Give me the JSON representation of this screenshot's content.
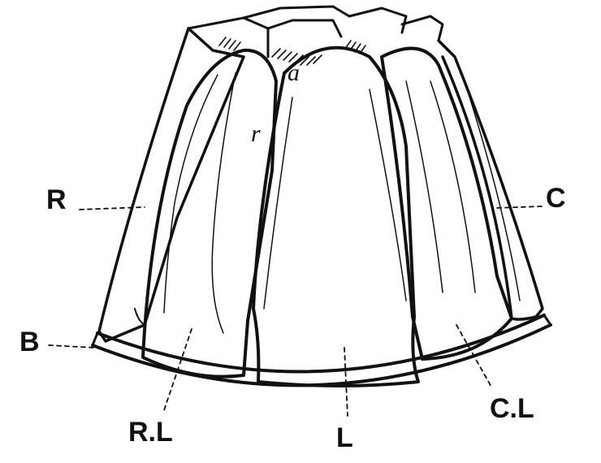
{
  "figure": {
    "labels": {
      "R": "R",
      "C": "C",
      "B": "B",
      "RL": "R.L",
      "L": "L",
      "CL": "C.L",
      "a": "a",
      "r": "r"
    },
    "colors": {
      "ink": "#111111",
      "paper": "#ffffff"
    }
  }
}
